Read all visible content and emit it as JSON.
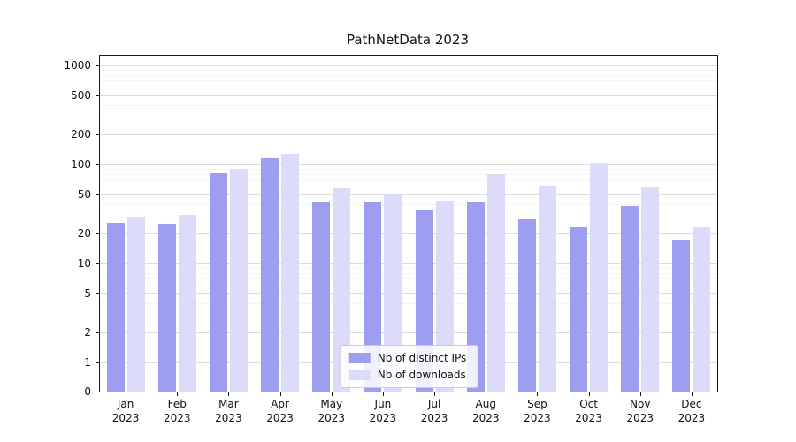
{
  "title": "PathNetData 2023",
  "chart_data": {
    "type": "bar",
    "title": "PathNetData 2023",
    "y_scale": "symlog",
    "grid": true,
    "legend_position": "lower center",
    "year_label": "2023",
    "categories": [
      "Jan",
      "Feb",
      "Mar",
      "Apr",
      "May",
      "Jun",
      "Jul",
      "Aug",
      "Sep",
      "Oct",
      "Nov",
      "Dec"
    ],
    "yticks": [
      0,
      1,
      2,
      5,
      10,
      20,
      50,
      100,
      200,
      500,
      1000
    ],
    "ylim": [
      0,
      1250
    ],
    "series": [
      {
        "name": "Nb of distinct IPs",
        "color": "#9e9ef0",
        "values": [
          26,
          25,
          82,
          115,
          41,
          41,
          34,
          41,
          28,
          23,
          38,
          17
        ]
      },
      {
        "name": "Nb of downloads",
        "color": "#dcdcfa",
        "values": [
          29,
          31,
          91,
          128,
          57,
          50,
          43,
          80,
          61,
          105,
          58,
          23
        ]
      }
    ]
  },
  "colors": {
    "major_grid": "#dcdcdc",
    "minor_grid": "#f4f4f4",
    "axis": "#1a1a1a",
    "background": "#ffffff"
  }
}
